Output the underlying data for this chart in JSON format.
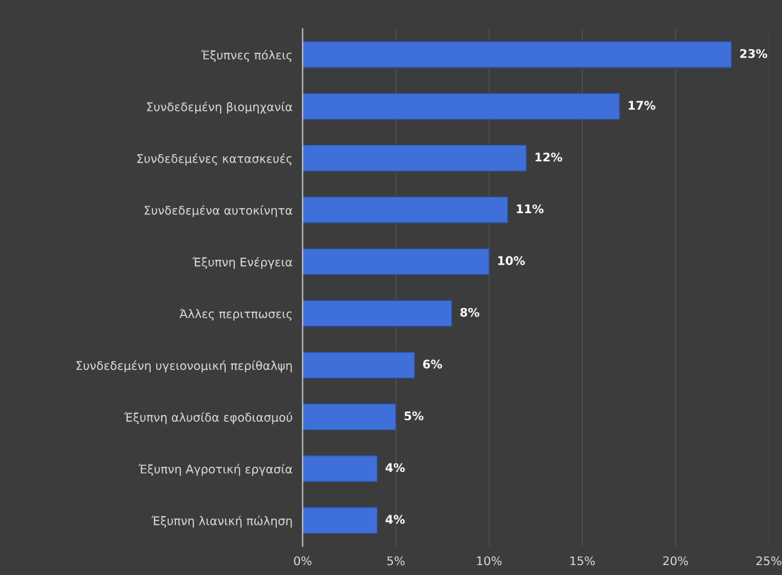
{
  "chart_data": {
    "type": "bar",
    "orientation": "horizontal",
    "categories": [
      "Έξυπνες πόλεις",
      "Συνδεδεμένη βιομηχανία",
      "Συνδεδεμένες κατασκευές",
      "Συνδεδεμένα αυτοκίνητα",
      "Έξυπνη Ενέργεια",
      "Άλλες περιτπωσεις",
      "Συνδεδεμένη υγειονομική περίθαλψη",
      "Έξυπνη αλυσίδα εφοδιασμού",
      "Έξυπνη Αγροτική εργασία",
      "Έξυπνη λιανική πώληση"
    ],
    "values": [
      23,
      17,
      12,
      11,
      10,
      8,
      6,
      5,
      4,
      4
    ],
    "value_labels": [
      "23%",
      "17%",
      "12%",
      "11%",
      "10%",
      "8%",
      "6%",
      "5%",
      "4%",
      "4%"
    ],
    "color": "#3f6fd8",
    "xlim": [
      0,
      25
    ],
    "xticks": [
      {
        "value": 0,
        "label": "0%"
      },
      {
        "value": 5,
        "label": "5%"
      },
      {
        "value": 10,
        "label": "10%"
      },
      {
        "value": 15,
        "label": "15%"
      },
      {
        "value": 20,
        "label": "20%"
      },
      {
        "value": 25,
        "label": "25%"
      }
    ],
    "grid": "x"
  }
}
